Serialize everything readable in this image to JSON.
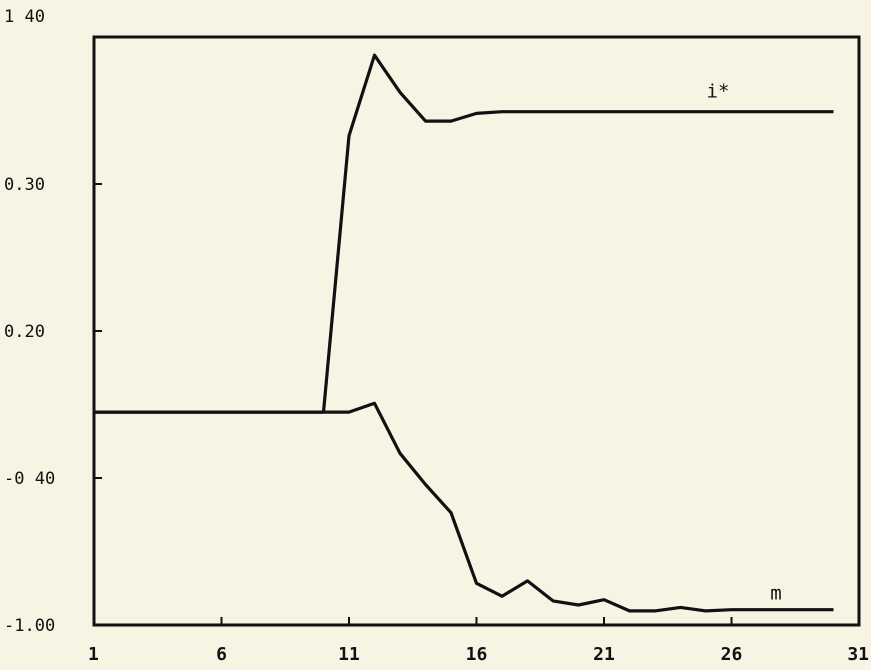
{
  "chart_data": {
    "type": "line",
    "title": "",
    "xlabel": "",
    "ylabel": "",
    "x_ticks": [
      "1",
      "6",
      "11",
      "16",
      "21",
      "26",
      "31"
    ],
    "y_ticks": [
      "1 40",
      "0.30",
      "0.20",
      "-0 40",
      "-1.00"
    ],
    "grid": false,
    "legend": "none",
    "line_color": "#111111",
    "background_color": "#f7f4e4",
    "x": [
      1,
      2,
      3,
      4,
      5,
      6,
      7,
      8,
      9,
      10,
      11,
      12,
      13,
      14,
      15,
      16,
      17,
      18,
      19,
      20,
      21,
      22,
      23,
      24,
      25,
      26,
      27,
      28,
      29,
      30
    ],
    "series": [
      {
        "name": "i*",
        "y_pos_from_top": [
          0.638,
          0.638,
          0.638,
          0.638,
          0.638,
          0.638,
          0.638,
          0.638,
          0.638,
          0.638,
          0.168,
          0.031,
          0.094,
          0.143,
          0.143,
          0.13,
          0.127,
          0.127,
          0.127,
          0.127,
          0.127,
          0.127,
          0.127,
          0.127,
          0.127,
          0.127,
          0.127,
          0.127,
          0.127,
          0.127
        ]
      },
      {
        "name": "m",
        "y_pos_from_top": [
          0.638,
          0.638,
          0.638,
          0.638,
          0.638,
          0.638,
          0.638,
          0.638,
          0.638,
          0.638,
          0.638,
          0.623,
          0.708,
          0.761,
          0.809,
          0.929,
          0.951,
          0.925,
          0.959,
          0.966,
          0.957,
          0.976,
          0.976,
          0.97,
          0.976,
          0.974,
          0.974,
          0.974,
          0.974,
          0.974
        ]
      }
    ]
  }
}
